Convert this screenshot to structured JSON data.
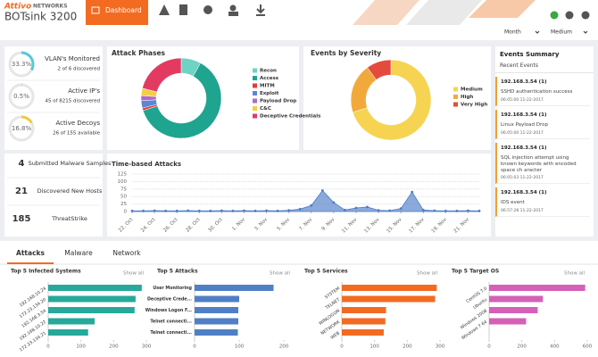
{
  "header": {
    "brand": "Attivo",
    "brand_sub": "NETWORKS",
    "product": "BOTsink 3200",
    "tab": "Dashboard"
  },
  "filters": [
    "Month",
    "Medium"
  ],
  "gauges": [
    {
      "value": 33.3,
      "value_label": "33.3%",
      "title": "VLAN's Monitored",
      "detail": "2 of 6 discovered",
      "color": "#5bc8d8"
    },
    {
      "value": 0.5,
      "value_label": "0.5%",
      "title": "Active IP's",
      "detail": "45 of 8215 discovered",
      "color": "#5bc8d8"
    },
    {
      "value": 16.8,
      "value_label": "16.8%",
      "title": "Active Decoys",
      "detail": "26 of 155 available",
      "color": "#f2c744"
    }
  ],
  "counters": [
    {
      "value": "4",
      "label": "Submitted Malware Samples"
    },
    {
      "value": "21",
      "label": "Discovered New Hosts"
    },
    {
      "value": "185",
      "label": "ThreatStrike"
    }
  ],
  "events": {
    "title": "Events Summary",
    "subtitle": "Recent Events",
    "items": [
      {
        "ip": "192.168.3.54 (1)",
        "text": "SSHD authentication success",
        "time": "06:05:00 11-22-2017"
      },
      {
        "ip": "192.168.3.54 (1)",
        "text": "Linux Payload Drop",
        "time": "06:05:00 11-22-2017"
      },
      {
        "ip": "192.168.3.54 (1)",
        "text": "SQL injection attempt using known keywords with encoded space ch aracter",
        "time": "06:05:03 11-22-2017"
      },
      {
        "ip": "192.168.3.54 (1)",
        "text": "IDS event",
        "time": "06:57:28 11-22-2017"
      }
    ]
  },
  "tabs": [
    "Attacks",
    "Malware",
    "Network"
  ],
  "show_all": "Show all",
  "chart_data": [
    {
      "type": "pie",
      "donut": true,
      "title": "Attack Phases",
      "categories": [
        "Recon",
        "Access",
        "MITM",
        "Exploit",
        "Payload Drop",
        "C&C",
        "Deceptive Credentials"
      ],
      "values": [
        8,
        62,
        1,
        3,
        2,
        3,
        21
      ],
      "colors": [
        "#6fd3c4",
        "#1fa48f",
        "#e53935",
        "#5b86d6",
        "#b268c4",
        "#f3cf45",
        "#e33a62"
      ],
      "legend": "right"
    },
    {
      "type": "pie",
      "donut": true,
      "title": "Events by Severity",
      "categories": [
        "Medium",
        "High",
        "Very High"
      ],
      "values": [
        70,
        20,
        10
      ],
      "colors": [
        "#f6d452",
        "#f2a93b",
        "#e54b3c"
      ],
      "legend": "right"
    },
    {
      "type": "line",
      "title": "Time-based Attacks",
      "categories": [
        "22. Oct",
        null,
        "24. Oct",
        null,
        "26. Oct",
        null,
        "28. Oct",
        null,
        "30. Oct",
        null,
        "1. Nov",
        null,
        "3. Nov",
        null,
        "5. Nov",
        null,
        "7. Nov",
        null,
        "9. Nov",
        null,
        "11. Nov",
        null,
        "13. Nov",
        null,
        "15. Nov",
        null,
        "17. Nov",
        null,
        "19. Nov",
        null,
        "21. Nov",
        null
      ],
      "series": [
        {
          "color": "#4d7cc7",
          "values": [
            2,
            2,
            3,
            2,
            2,
            3,
            2,
            2,
            3,
            2,
            3,
            2,
            3,
            2,
            4,
            8,
            20,
            70,
            30,
            5,
            12,
            15,
            4,
            3,
            10,
            65,
            5,
            3,
            2,
            2,
            3,
            2
          ]
        }
      ],
      "ylim": [
        0,
        125
      ],
      "yticks": [
        0,
        25,
        50,
        75,
        100,
        125
      ],
      "grid": true,
      "area": true
    },
    {
      "type": "barh",
      "title": "Top 5 Infected Systems",
      "categories": [
        "192.168.10.24",
        "172.23.134.20",
        "192.168.3.54",
        "192.168.10.22",
        "172.23.134.21"
      ],
      "values": [
        286,
        267,
        264,
        142,
        122
      ],
      "color": "#26a99a",
      "xlim": [
        0,
        300
      ],
      "xticks": [
        0,
        100,
        200,
        300
      ]
    },
    {
      "type": "barh",
      "title": "Top 5 Attacks",
      "categories": [
        "User Monitoring",
        "Deceptive Crede...",
        "Windows Logon F...",
        "Telnet connecti...",
        "Telnet connecti..."
      ],
      "values": [
        177,
        100,
        98,
        98,
        97
      ],
      "color": "#4f80c6",
      "xlim": [
        0,
        220
      ],
      "xticks": [
        0,
        100,
        200
      ]
    },
    {
      "type": "barh",
      "title": "Top 5 Services",
      "categories": [
        "SYSTEM",
        "TELNET",
        "WINLOGON",
        "NETWORK",
        "WEB"
      ],
      "values": [
        290,
        285,
        135,
        133,
        128
      ],
      "color": "#f26b21",
      "xlim": [
        0,
        300
      ],
      "xticks": [
        0,
        100,
        200,
        300
      ]
    },
    {
      "type": "barh",
      "title": "Top 5 Target OS",
      "categories": [
        "CentOS 7.0",
        "Ubuntu",
        "Windows 2008",
        "Windows 7 64"
      ],
      "values": [
        587,
        329,
        297,
        226
      ],
      "color": "#d560b8",
      "xlim": [
        0,
        600
      ],
      "xticks": [
        0,
        200,
        400,
        600
      ]
    }
  ]
}
